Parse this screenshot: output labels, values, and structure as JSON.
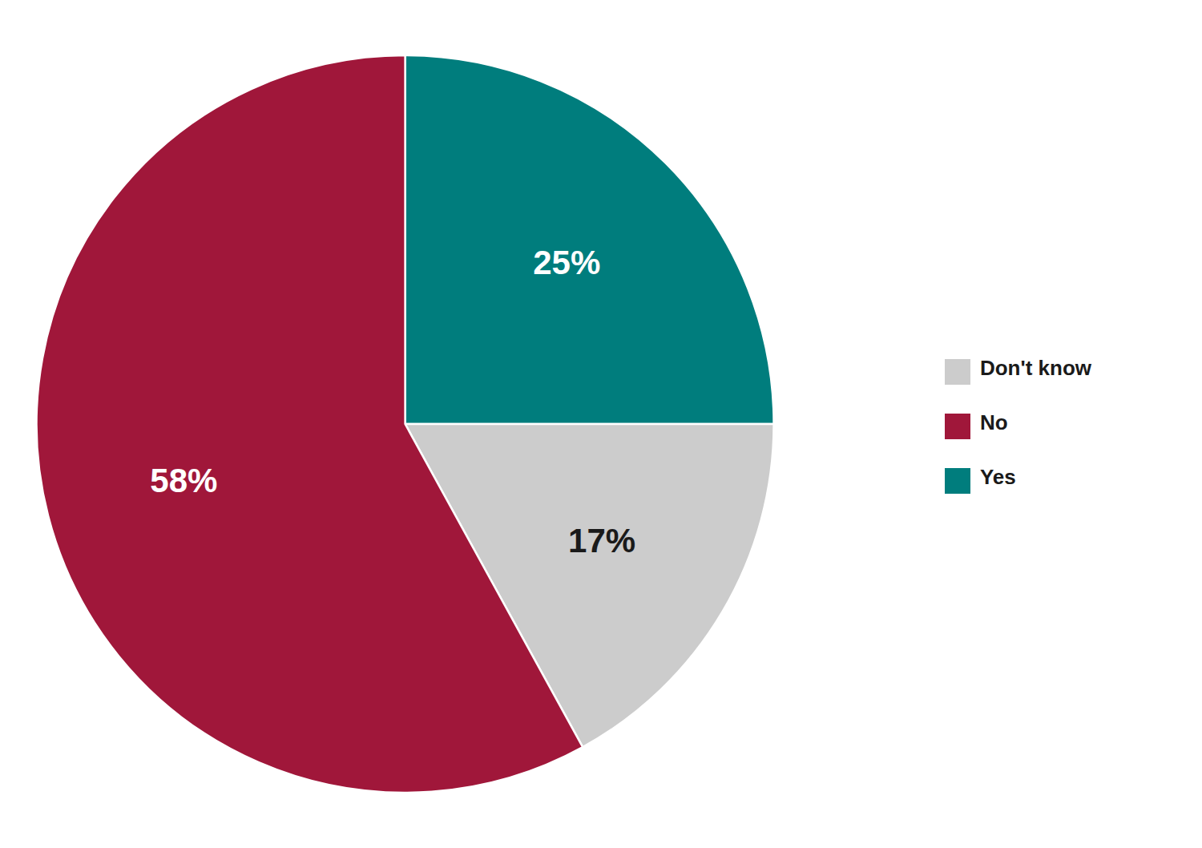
{
  "chart_data": {
    "type": "pie",
    "categories": [
      "Yes",
      "Don't know",
      "No"
    ],
    "values": [
      25,
      17,
      58
    ],
    "value_labels": [
      "25%",
      "17%",
      "58%"
    ],
    "colors": [
      "#007d7d",
      "#cccccc",
      "#a0173a"
    ],
    "data_labels": true,
    "legend": "right"
  }
}
